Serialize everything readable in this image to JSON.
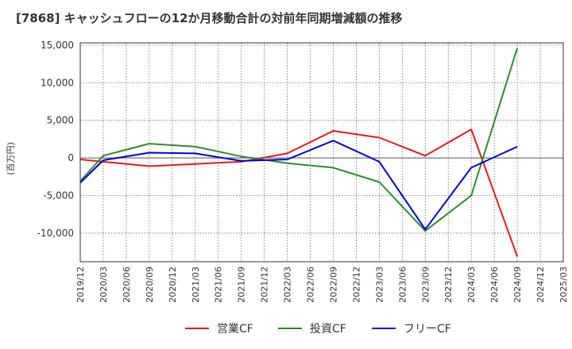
{
  "chart_data": {
    "type": "line",
    "title": "[7868]  キャッシュフローの12か月移動合計の対前年同期増減額の推移",
    "ylabel": "(百万円)",
    "ylim": [
      -13800,
      15300
    ],
    "yticks": [
      15000,
      10000,
      5000,
      0,
      -5000,
      -10000
    ],
    "ytick_labels": [
      "15,000",
      "10,000",
      "5,000",
      "0",
      "-5,000",
      "-10,000"
    ],
    "categories": [
      "2019/12",
      "2020/03",
      "2020/06",
      "2020/09",
      "2020/12",
      "2021/03",
      "2021/06",
      "2021/09",
      "2021/12",
      "2022/03",
      "2022/06",
      "2022/09",
      "2022/12",
      "2023/03",
      "2023/06",
      "2023/09",
      "2023/12",
      "2024/03",
      "2024/06",
      "2024/09",
      "2024/12",
      "2025/03"
    ],
    "grid": true,
    "legend_position": "bottom",
    "series": [
      {
        "name": "営業CF",
        "color": "#e41a1c",
        "values": [
          -200,
          -500,
          null,
          -1100,
          null,
          -800,
          null,
          -500,
          null,
          600,
          null,
          3600,
          null,
          2700,
          null,
          300,
          null,
          3800,
          null,
          -13100,
          null,
          null
        ]
      },
      {
        "name": "投資CF",
        "color": "#2e8b2e",
        "values": [
          -3100,
          300,
          null,
          1900,
          null,
          1500,
          null,
          200,
          null,
          -700,
          null,
          -1300,
          null,
          -3200,
          null,
          -9700,
          null,
          -5000,
          null,
          14600,
          null,
          null
        ]
      },
      {
        "name": "フリーCF",
        "color": "#0000dd",
        "values": [
          -3300,
          -300,
          null,
          700,
          null,
          600,
          null,
          -400,
          null,
          -200,
          null,
          2300,
          null,
          -500,
          null,
          -9500,
          null,
          -1300,
          null,
          1500,
          null,
          null
        ]
      }
    ]
  }
}
